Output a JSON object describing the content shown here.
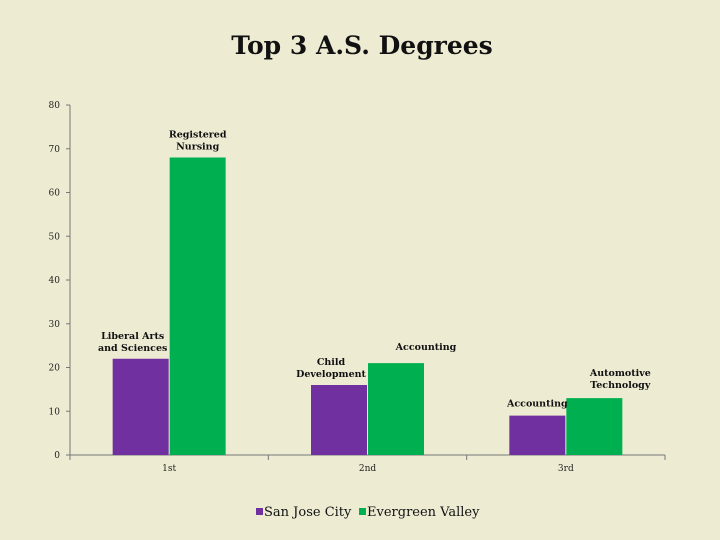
{
  "chart_data": {
    "type": "bar",
    "title": "Top 3 A.S. Degrees",
    "xlabel": "",
    "ylabel": "",
    "ylim": [
      0,
      80
    ],
    "yticks": [
      0,
      10,
      20,
      30,
      40,
      50,
      60,
      70,
      80
    ],
    "yticklabels": [
      "0",
      "10",
      "20",
      "30",
      "40",
      "50",
      "60",
      "70",
      "80"
    ],
    "categories": [
      "1st",
      "2nd",
      "3rd"
    ],
    "series": [
      {
        "name": "San Jose City",
        "color": "#7030a0",
        "values": [
          22,
          16,
          9
        ],
        "labels": [
          "Liberal Arts and Sciences",
          "Child Development",
          "Accounting"
        ]
      },
      {
        "name": "Evergreen Valley",
        "color": "#00b050",
        "values": [
          68,
          21,
          13
        ],
        "labels": [
          "Registered Nursing",
          "Accounting",
          "Automotive Technology"
        ]
      }
    ],
    "grid": false,
    "legend": "bottom"
  }
}
